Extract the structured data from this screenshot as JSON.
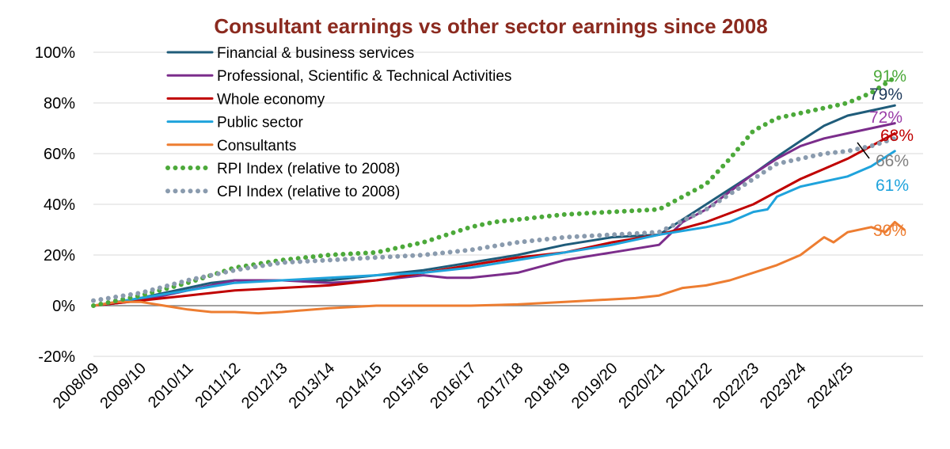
{
  "chart_data": {
    "type": "line",
    "title": "Consultant earnings vs other sector earnings since 2008",
    "title_color": "#8B2A1F",
    "xlabel": "",
    "ylabel": "",
    "ylim": [
      -20,
      100
    ],
    "y_ticks": [
      -20,
      0,
      20,
      40,
      60,
      80,
      100
    ],
    "y_tick_labels": [
      "-20%",
      "0%",
      "20%",
      "40%",
      "60%",
      "80%",
      "100%"
    ],
    "xlim": [
      0,
      17.6
    ],
    "x_tick_labels": [
      "2008/09",
      "2009/10",
      "2010/11",
      "2011/12",
      "2012/13",
      "2013/14",
      "2014/15",
      "2015/16",
      "2016/17",
      "2017/18",
      "2018/19",
      "2019/20",
      "2020/21",
      "2021/22",
      "2022/23",
      "2023/24",
      "2024/25"
    ],
    "grid": true,
    "legend_position": "top-left",
    "series": [
      {
        "name": "Financial & business services",
        "color": "#1F5C7A",
        "style": "solid",
        "end_label": "79%",
        "label_color": "#1F3B5C",
        "points": [
          [
            0,
            0
          ],
          [
            0.5,
            1
          ],
          [
            1,
            3
          ],
          [
            1.5,
            5
          ],
          [
            2,
            7
          ],
          [
            2.5,
            9
          ],
          [
            3,
            10
          ],
          [
            4,
            10
          ],
          [
            5,
            10
          ],
          [
            6,
            12
          ],
          [
            7,
            14
          ],
          [
            8,
            17
          ],
          [
            9,
            20
          ],
          [
            10,
            24
          ],
          [
            11,
            27
          ],
          [
            12,
            28
          ],
          [
            13,
            40
          ],
          [
            14,
            52
          ],
          [
            14.6,
            60
          ],
          [
            15,
            65
          ],
          [
            15.5,
            71
          ],
          [
            16,
            75
          ],
          [
            16.5,
            77
          ],
          [
            17,
            79
          ]
        ]
      },
      {
        "name": "Professional, Scientific & Technical Activities",
        "color": "#7B2D8B",
        "style": "solid",
        "end_label": "72%",
        "label_color": "#9B3DA8",
        "points": [
          [
            0,
            0
          ],
          [
            1,
            2
          ],
          [
            2,
            6
          ],
          [
            3,
            10
          ],
          [
            4,
            10
          ],
          [
            5,
            9
          ],
          [
            6,
            10
          ],
          [
            7,
            12
          ],
          [
            7.5,
            11
          ],
          [
            8,
            11
          ],
          [
            9,
            13
          ],
          [
            10,
            18
          ],
          [
            11,
            21
          ],
          [
            12,
            24
          ],
          [
            12.5,
            33
          ],
          [
            13,
            38
          ],
          [
            13.5,
            45
          ],
          [
            14,
            52
          ],
          [
            14.5,
            58
          ],
          [
            15,
            63
          ],
          [
            15.5,
            66
          ],
          [
            16,
            68
          ],
          [
            16.5,
            70
          ],
          [
            17,
            72
          ]
        ]
      },
      {
        "name": "Whole economy",
        "color": "#C00000",
        "style": "solid",
        "end_label": "68%",
        "label_color": "#C00000",
        "points": [
          [
            0,
            0
          ],
          [
            1,
            2
          ],
          [
            2,
            4
          ],
          [
            3,
            6
          ],
          [
            4,
            7
          ],
          [
            5,
            8
          ],
          [
            6,
            10
          ],
          [
            7,
            13
          ],
          [
            8,
            16
          ],
          [
            9,
            19
          ],
          [
            10,
            21
          ],
          [
            11,
            25
          ],
          [
            12,
            28
          ],
          [
            13,
            33
          ],
          [
            14,
            40
          ],
          [
            14.5,
            45
          ],
          [
            15,
            50
          ],
          [
            15.5,
            54
          ],
          [
            16,
            58
          ],
          [
            16.5,
            63
          ],
          [
            17,
            68
          ]
        ]
      },
      {
        "name": "Public sector",
        "color": "#1FA3DC",
        "style": "solid",
        "end_label": "61%",
        "label_color": "#1FA3DC",
        "points": [
          [
            0,
            0
          ],
          [
            1,
            3
          ],
          [
            2,
            6
          ],
          [
            3,
            9
          ],
          [
            4,
            10
          ],
          [
            5,
            11
          ],
          [
            6,
            12
          ],
          [
            7,
            13
          ],
          [
            8,
            15
          ],
          [
            9,
            18
          ],
          [
            10,
            21
          ],
          [
            11,
            24
          ],
          [
            12,
            28
          ],
          [
            13,
            31
          ],
          [
            13.5,
            33
          ],
          [
            14,
            37
          ],
          [
            14.3,
            38
          ],
          [
            14.5,
            43
          ],
          [
            15,
            47
          ],
          [
            15.5,
            49
          ],
          [
            16,
            51
          ],
          [
            16.5,
            55
          ],
          [
            17,
            61
          ]
        ]
      },
      {
        "name": "Consultants",
        "color": "#ED7D31",
        "style": "solid",
        "end_label": "30%",
        "label_color": "#ED7D31",
        "points": [
          [
            0,
            0
          ],
          [
            0.5,
            1.5
          ],
          [
            1,
            1.5
          ],
          [
            1.5,
            0
          ],
          [
            2,
            -1.5
          ],
          [
            2.5,
            -2.5
          ],
          [
            3,
            -2.5
          ],
          [
            3.5,
            -3
          ],
          [
            4,
            -2.5
          ],
          [
            5,
            -1
          ],
          [
            6,
            0
          ],
          [
            7,
            0
          ],
          [
            8,
            0
          ],
          [
            9,
            0.5
          ],
          [
            10,
            1.5
          ],
          [
            11,
            2.5
          ],
          [
            11.5,
            3
          ],
          [
            12,
            4
          ],
          [
            12.5,
            7
          ],
          [
            13,
            8
          ],
          [
            13.5,
            10
          ],
          [
            14,
            13
          ],
          [
            14.5,
            16
          ],
          [
            15,
            20
          ],
          [
            15.5,
            27
          ],
          [
            15.7,
            25
          ],
          [
            16,
            29
          ],
          [
            16.5,
            31
          ],
          [
            16.8,
            29
          ],
          [
            17,
            33
          ],
          [
            17.2,
            30
          ]
        ]
      },
      {
        "name": "RPI Index (relative to 2008)",
        "color": "#4CA93A",
        "style": "dotted",
        "end_label": "91%",
        "label_color": "#4CA93A",
        "points": [
          [
            0,
            0
          ],
          [
            1,
            4
          ],
          [
            2,
            9
          ],
          [
            3,
            15
          ],
          [
            4,
            18
          ],
          [
            5,
            20
          ],
          [
            6,
            21
          ],
          [
            7,
            25
          ],
          [
            8,
            31
          ],
          [
            8.5,
            33
          ],
          [
            9,
            34
          ],
          [
            10,
            36
          ],
          [
            11,
            37
          ],
          [
            12,
            38
          ],
          [
            13,
            48
          ],
          [
            13.5,
            58
          ],
          [
            14,
            69
          ],
          [
            14.5,
            74
          ],
          [
            15,
            76
          ],
          [
            15.5,
            78
          ],
          [
            16,
            80
          ],
          [
            16.5,
            84
          ],
          [
            17,
            90
          ]
        ]
      },
      {
        "name": "CPI Index (relative to 2008)",
        "color": "#8A9BAE",
        "style": "dotted",
        "end_label": "66%",
        "label_color": "#808080",
        "points": [
          [
            0,
            2
          ],
          [
            1,
            5
          ],
          [
            2,
            10
          ],
          [
            3,
            14
          ],
          [
            4,
            17
          ],
          [
            5,
            18
          ],
          [
            6,
            19
          ],
          [
            7,
            20
          ],
          [
            8,
            22
          ],
          [
            9,
            25
          ],
          [
            10,
            27
          ],
          [
            11,
            28
          ],
          [
            12,
            29
          ],
          [
            13,
            38
          ],
          [
            14,
            50
          ],
          [
            14.5,
            56
          ],
          [
            15,
            58
          ],
          [
            15.5,
            60
          ],
          [
            16,
            61
          ],
          [
            16.5,
            63
          ],
          [
            17,
            66
          ]
        ]
      }
    ]
  }
}
